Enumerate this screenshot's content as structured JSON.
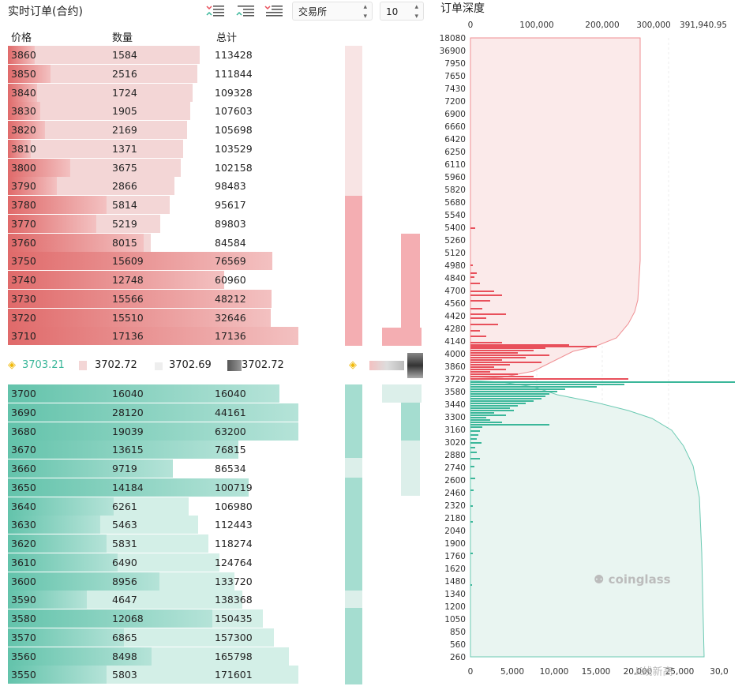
{
  "orderbook": {
    "title": "实时订单(合约)",
    "exchange_select": "交易所",
    "depth_select": "10",
    "headers": {
      "price": "价格",
      "qty": "数量",
      "total": "总计"
    },
    "asks": [
      {
        "price": "3860",
        "qty": "1584",
        "total": "113428"
      },
      {
        "price": "3850",
        "qty": "2516",
        "total": "111844"
      },
      {
        "price": "3840",
        "qty": "1724",
        "total": "109328"
      },
      {
        "price": "3830",
        "qty": "1905",
        "total": "107603"
      },
      {
        "price": "3820",
        "qty": "2169",
        "total": "105698"
      },
      {
        "price": "3810",
        "qty": "1371",
        "total": "103529"
      },
      {
        "price": "3800",
        "qty": "3675",
        "total": "102158"
      },
      {
        "price": "3790",
        "qty": "2866",
        "total": "98483"
      },
      {
        "price": "3780",
        "qty": "5814",
        "total": "95617"
      },
      {
        "price": "3770",
        "qty": "5219",
        "total": "89803"
      },
      {
        "price": "3760",
        "qty": "8015",
        "total": "84584"
      },
      {
        "price": "3750",
        "qty": "15609",
        "total": "76569"
      },
      {
        "price": "3740",
        "qty": "12748",
        "total": "60960"
      },
      {
        "price": "3730",
        "qty": "15566",
        "total": "48212"
      },
      {
        "price": "3720",
        "qty": "15510",
        "total": "32646"
      },
      {
        "price": "3710",
        "qty": "17136",
        "total": "17136"
      }
    ],
    "mid": {
      "price1": "3703.21",
      "price2": "3702.72",
      "price3": "3702.69",
      "price4": "3702.72"
    },
    "bids": [
      {
        "price": "3700",
        "qty": "16040",
        "total": "16040"
      },
      {
        "price": "3690",
        "qty": "28120",
        "total": "44161"
      },
      {
        "price": "3680",
        "qty": "19039",
        "total": "63200"
      },
      {
        "price": "3670",
        "qty": "13615",
        "total": "76815"
      },
      {
        "price": "3660",
        "qty": "9719",
        "total": "86534"
      },
      {
        "price": "3650",
        "qty": "14184",
        "total": "100719"
      },
      {
        "price": "3640",
        "qty": "6261",
        "total": "106980"
      },
      {
        "price": "3630",
        "qty": "5463",
        "total": "112443"
      },
      {
        "price": "3620",
        "qty": "5831",
        "total": "118274"
      },
      {
        "price": "3610",
        "qty": "6490",
        "total": "124764"
      },
      {
        "price": "3600",
        "qty": "8956",
        "total": "133720"
      },
      {
        "price": "3590",
        "qty": "4647",
        "total": "138368"
      },
      {
        "price": "3580",
        "qty": "12068",
        "total": "150435"
      },
      {
        "price": "3570",
        "qty": "6865",
        "total": "157300"
      },
      {
        "price": "3560",
        "qty": "8498",
        "total": "165798"
      },
      {
        "price": "3550",
        "qty": "5803",
        "total": "171601"
      }
    ]
  },
  "depth": {
    "title": "订单深度",
    "top_axis": [
      "0",
      "100,000",
      "200,000",
      "300,000",
      "391,940.95"
    ],
    "bottom_axis": [
      "0",
      "5,000",
      "10,000",
      "15,000",
      "20,000",
      "25,000",
      "30,0"
    ],
    "y_labels": [
      "18080",
      "36900",
      "7950",
      "7650",
      "7430",
      "7200",
      "6900",
      "6660",
      "6420",
      "6250",
      "6110",
      "5960",
      "5820",
      "5680",
      "5540",
      "5400",
      "5260",
      "5120",
      "4980",
      "4840",
      "4700",
      "4560",
      "4420",
      "4280",
      "4140",
      "4000",
      "3860",
      "3720",
      "3580",
      "3440",
      "3300",
      "3160",
      "3020",
      "2880",
      "2740",
      "2600",
      "2460",
      "2320",
      "2180",
      "2040",
      "1900",
      "1760",
      "1620",
      "1480",
      "1340",
      "1200",
      "1050",
      "850",
      "560",
      "260"
    ],
    "watermark": "coinglass",
    "corner_watermark": "K线新高",
    "colors": {
      "ask": "#e8505b",
      "bid": "#3bb79a"
    }
  }
}
